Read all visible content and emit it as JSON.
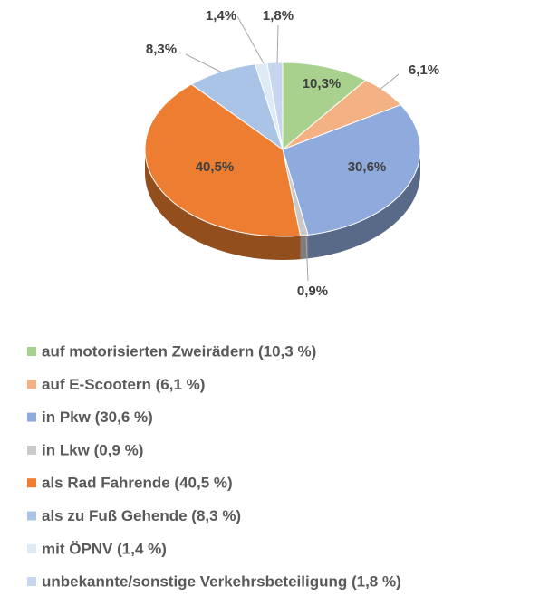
{
  "chart_data": {
    "type": "pie",
    "categories": [
      "auf motorisierten Zweirädern (10,3 %)",
      "auf E-Scootern (6,1 %)",
      "in Pkw (30,6 %)",
      "in Lkw (0,9 %)",
      "als Rad Fahrende (40,5 %)",
      "als zu Fuß Gehende (8,3 %)",
      "mit ÖPNV (1,4 %)",
      "unbekannte/sonstige Verkehrsbeteiligung (1,8 %)"
    ],
    "values": [
      10.3,
      6.1,
      30.6,
      0.9,
      40.5,
      8.3,
      1.4,
      1.8
    ],
    "value_labels": [
      "10,3%",
      "6,1%",
      "30,6%",
      "0,9%",
      "40,5%",
      "8,3%",
      "1,4%",
      "1,8%"
    ],
    "colors": [
      "#a9d18e",
      "#f4b183",
      "#8faadc",
      "#c9c9c9",
      "#ed7d31",
      "#a9c4e6",
      "#deebf7",
      "#c5d6ee"
    ],
    "legend": "bottom"
  }
}
